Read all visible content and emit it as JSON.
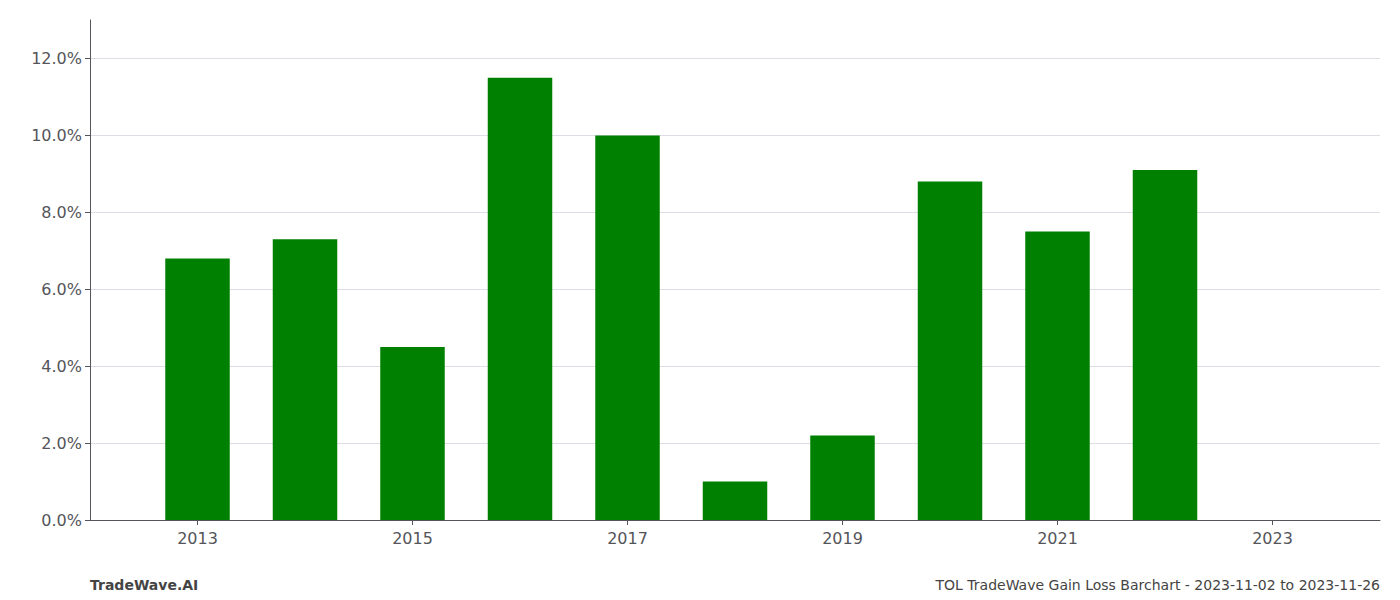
{
  "chart_data": {
    "type": "bar",
    "x": [
      2013,
      2014,
      2015,
      2016,
      2017,
      2018,
      2019,
      2020,
      2021,
      2022
    ],
    "values": [
      0.068,
      0.073,
      0.045,
      0.115,
      0.1,
      0.01,
      0.022,
      0.088,
      0.075,
      0.091
    ],
    "color": "#008000",
    "xlim": [
      2012.0,
      2024.0
    ],
    "xticks": [
      2013,
      2015,
      2017,
      2019,
      2021,
      2023
    ],
    "ylim": [
      0,
      0.13
    ],
    "yticks": [
      {
        "value": 0.0,
        "label": "0.0%"
      },
      {
        "value": 0.02,
        "label": "2.0%"
      },
      {
        "value": 0.04,
        "label": "4.0%"
      },
      {
        "value": 0.06,
        "label": "6.0%"
      },
      {
        "value": 0.08,
        "label": "8.0%"
      },
      {
        "value": 0.1,
        "label": "10.0%"
      },
      {
        "value": 0.12,
        "label": "12.0%"
      }
    ],
    "grid": true,
    "annotations": [
      "TradeWave.AI",
      "TOL TradeWave Gain Loss Barchart - 2023-11-02 to 2023-11-26"
    ]
  }
}
